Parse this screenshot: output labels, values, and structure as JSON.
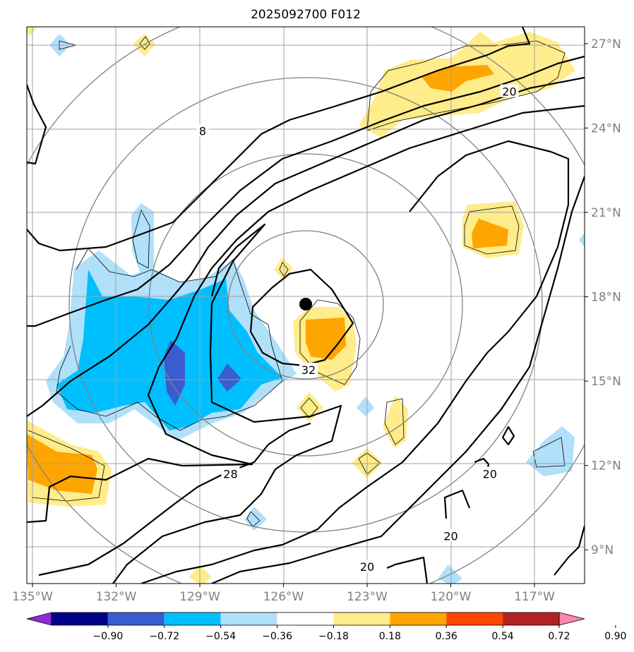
{
  "title": "2025092700 F012",
  "map": {
    "lon_range": [
      -135,
      -115
    ],
    "lat_range": [
      7.8,
      27.6
    ],
    "x_ticks": [
      {
        "lon": -135,
        "label": "135°W"
      },
      {
        "lon": -132,
        "label": "132°W"
      },
      {
        "lon": -129,
        "label": "129°W"
      },
      {
        "lon": -126,
        "label": "126°W"
      },
      {
        "lon": -123,
        "label": "123°W"
      },
      {
        "lon": -120,
        "label": "120°W"
      },
      {
        "lon": -117,
        "label": "117°W"
      }
    ],
    "y_ticks": [
      {
        "lat": 27,
        "label": "27°N"
      },
      {
        "lat": 24,
        "label": "24°N"
      },
      {
        "lat": 21,
        "label": "21°N"
      },
      {
        "lat": 18,
        "label": "18°N"
      },
      {
        "lat": 15,
        "label": "15°N"
      },
      {
        "lat": 12,
        "label": "12°N"
      },
      {
        "lat": 9,
        "label": "9°N"
      }
    ],
    "grid": true,
    "storm_center": {
      "lon": -125.2,
      "lat": 17.7
    },
    "contour_labels": [
      {
        "text": "8",
        "lon": -128.9,
        "lat": 23.9
      },
      {
        "text": "20",
        "lon": -117.9,
        "lat": 25.3
      },
      {
        "text": "32",
        "lon": -125.1,
        "lat": 15.4
      },
      {
        "text": "28",
        "lon": -127.9,
        "lat": 11.7
      },
      {
        "text": "20",
        "lon": -118.6,
        "lat": 11.7
      },
      {
        "text": "20",
        "lon": -120.0,
        "lat": 9.5
      },
      {
        "text": "20",
        "lon": -123.0,
        "lat": 8.4
      }
    ]
  },
  "colorbar": {
    "levels": [
      "−0.90",
      "−0.72",
      "−0.54",
      "−0.36",
      "−0.18",
      "0.18",
      "0.36",
      "0.54",
      "0.72",
      "0.90"
    ],
    "colors": [
      "#8e2bd6",
      "#00008b",
      "#3a5ccf",
      "#00bfff",
      "#b0e0fa",
      "#ffffff",
      "#ffec8b",
      "#ffa500",
      "#ff4500",
      "#b22222",
      "#ff85b0"
    ]
  }
}
